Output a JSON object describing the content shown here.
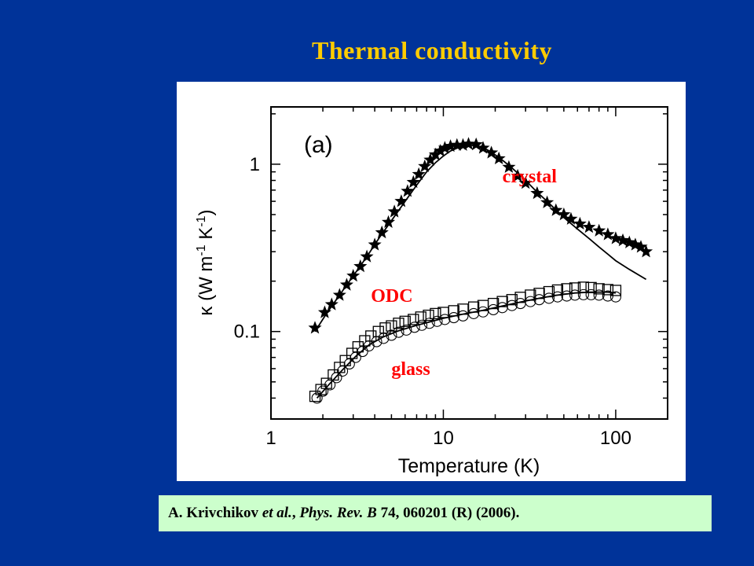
{
  "slide": {
    "title": "Thermal conductivity"
  },
  "citation": {
    "author": "A. Krivchikov",
    "etal": "et al.",
    "sep": ", ",
    "journal": "Phys. Rev. B",
    "details": " 74, 060201 (R) (2006)."
  },
  "colors": {
    "background": "#003399",
    "title": "#FFCC00",
    "citation_bg": "#CCFFCC",
    "annotation": "#FF0000"
  },
  "chart_data": {
    "type": "scatter",
    "panel_label": "(a)",
    "xlabel": "Temperature (K)",
    "ylabel": "κ (W m-1 K-1)",
    "xscale": "log",
    "yscale": "log",
    "xlim": [
      1,
      200
    ],
    "ylim": [
      0.03,
      2.2
    ],
    "x_ticks": [
      {
        "value": 1,
        "label": "1"
      },
      {
        "value": 10,
        "label": "10"
      },
      {
        "value": 100,
        "label": "100"
      }
    ],
    "y_ticks": [
      {
        "value": 0.1,
        "label": "0.1"
      },
      {
        "value": 1,
        "label": "1"
      }
    ],
    "grid": false,
    "series": [
      {
        "name": "crystal",
        "marker": "star",
        "x": [
          1.8,
          2.05,
          2.25,
          2.5,
          2.75,
          3.0,
          3.3,
          3.6,
          4.0,
          4.4,
          4.8,
          5.2,
          5.7,
          6.2,
          6.7,
          7.2,
          7.8,
          8.4,
          9.0,
          9.6,
          10.2,
          11.0,
          12.0,
          13.0,
          14.0,
          15.5,
          17.0,
          19.0,
          21.0,
          24.0,
          27.0,
          30.0,
          35.0,
          40.0,
          45.0,
          50.0,
          55.0,
          62.0,
          70.0,
          80.0,
          90.0,
          100.0,
          110.0,
          120.0,
          130.0,
          140.0,
          150.0
        ],
        "y": [
          0.105,
          0.13,
          0.145,
          0.165,
          0.19,
          0.215,
          0.245,
          0.28,
          0.33,
          0.39,
          0.45,
          0.52,
          0.6,
          0.69,
          0.78,
          0.87,
          0.97,
          1.06,
          1.14,
          1.2,
          1.25,
          1.28,
          1.3,
          1.3,
          1.32,
          1.31,
          1.25,
          1.17,
          1.08,
          0.96,
          0.85,
          0.77,
          0.67,
          0.59,
          0.53,
          0.5,
          0.47,
          0.44,
          0.42,
          0.4,
          0.38,
          0.36,
          0.35,
          0.34,
          0.33,
          0.32,
          0.3
        ]
      },
      {
        "name": "ODC",
        "marker": "open-square",
        "x": [
          1.8,
          1.95,
          2.1,
          2.3,
          2.5,
          2.7,
          2.95,
          3.2,
          3.5,
          3.8,
          4.2,
          4.6,
          5.0,
          5.5,
          6.0,
          6.7,
          7.4,
          8.2,
          9.0,
          10.0,
          11.5,
          13.0,
          15.0,
          17.0,
          19.5,
          22.0,
          25.0,
          28.0,
          32.0,
          36.0,
          41.0,
          46.0,
          52.0,
          58.0,
          65.0,
          72.0,
          80.0,
          90.0,
          100.0
        ],
        "y": [
          0.041,
          0.045,
          0.049,
          0.055,
          0.061,
          0.067,
          0.074,
          0.081,
          0.088,
          0.094,
          0.1,
          0.105,
          0.108,
          0.112,
          0.115,
          0.118,
          0.122,
          0.125,
          0.128,
          0.13,
          0.133,
          0.136,
          0.14,
          0.143,
          0.147,
          0.151,
          0.155,
          0.16,
          0.165,
          0.169,
          0.173,
          0.177,
          0.18,
          0.182,
          0.184,
          0.183,
          0.18,
          0.178,
          0.176
        ]
      },
      {
        "name": "glass",
        "marker": "open-circle",
        "x": [
          1.85,
          2.0,
          2.2,
          2.4,
          2.6,
          2.85,
          3.1,
          3.4,
          3.7,
          4.1,
          4.5,
          5.0,
          5.5,
          6.1,
          6.8,
          7.5,
          8.3,
          9.2,
          10.2,
          11.5,
          13.0,
          15.0,
          17.0,
          19.5,
          22.0,
          25.0,
          28.0,
          32.0,
          36.0,
          41.0,
          46.0,
          52.0,
          58.0,
          65.0,
          72.0,
          80.0,
          90.0,
          100.0
        ],
        "y": [
          0.04,
          0.044,
          0.048,
          0.053,
          0.058,
          0.064,
          0.07,
          0.076,
          0.082,
          0.087,
          0.091,
          0.095,
          0.099,
          0.102,
          0.106,
          0.109,
          0.112,
          0.115,
          0.118,
          0.121,
          0.124,
          0.128,
          0.131,
          0.135,
          0.139,
          0.143,
          0.147,
          0.151,
          0.155,
          0.158,
          0.161,
          0.163,
          0.165,
          0.166,
          0.166,
          0.165,
          0.163,
          0.161
        ]
      },
      {
        "marker": "line",
        "x": [
          1.8,
          2.1,
          2.5,
          3.0,
          3.6,
          4.3,
          5.0,
          6.0,
          7.0,
          8.0,
          9.0,
          10.0,
          11.0,
          12.5,
          14.0,
          16.0,
          18.0,
          21.0,
          25.0,
          30.0,
          35.0,
          40.0,
          50.0,
          60.0,
          70.0,
          80.0,
          90.0,
          100.0,
          120.0,
          150.0
        ],
        "y": [
          0.1,
          0.128,
          0.165,
          0.215,
          0.28,
          0.37,
          0.46,
          0.6,
          0.75,
          0.9,
          1.02,
          1.12,
          1.2,
          1.27,
          1.3,
          1.28,
          1.22,
          1.1,
          0.95,
          0.8,
          0.68,
          0.6,
          0.48,
          0.41,
          0.36,
          0.32,
          0.29,
          0.265,
          0.235,
          0.205
        ]
      },
      {
        "marker": "line",
        "x": [
          1.85,
          2.2,
          2.6,
          3.1,
          3.7,
          4.5,
          5.5,
          6.8,
          8.3,
          10.0,
          13.0,
          17.0,
          22.0,
          28.0,
          36.0,
          46.0,
          58.0,
          72.0,
          90.0,
          100.0
        ],
        "y": [
          0.04,
          0.049,
          0.059,
          0.071,
          0.083,
          0.093,
          0.101,
          0.108,
          0.114,
          0.12,
          0.127,
          0.134,
          0.142,
          0.15,
          0.158,
          0.165,
          0.17,
          0.172,
          0.172,
          0.17
        ]
      }
    ],
    "annotations": [
      {
        "text": "crystal",
        "x": 22,
        "y": 0.78
      },
      {
        "text": "ODC",
        "x": 3.8,
        "y": 0.15
      },
      {
        "text": "glass",
        "x": 5.0,
        "y": 0.055
      }
    ]
  }
}
